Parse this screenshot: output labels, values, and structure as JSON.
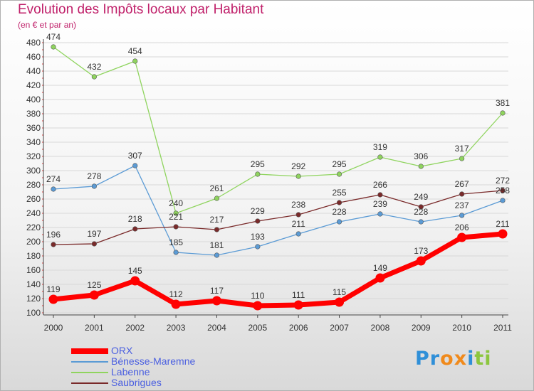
{
  "header": {
    "title": "Evolution des Impôts locaux par Habitant",
    "subtitle": "(en € et par an)"
  },
  "colors": {
    "title": "#c0206a",
    "legend_text": "#4a5fe0",
    "axis": "#333333"
  },
  "logo": {
    "text": "Proxiti",
    "letter_colors": [
      "#2f8fd8",
      "#2f8fd8",
      "#f08a1c",
      "#f08a1c",
      "#2f8fd8",
      "#8cc63f",
      "#8cc63f"
    ]
  },
  "chart_data": {
    "type": "line",
    "title": "Evolution des Impôts locaux par Habitant",
    "subtitle": "(en € et par an)",
    "xlabel": "",
    "ylabel": "",
    "x": [
      "2000",
      "2001",
      "2002",
      "2003",
      "2004",
      "2005",
      "2006",
      "2007",
      "2008",
      "2009",
      "2010",
      "2011"
    ],
    "ylim": [
      100,
      480
    ],
    "yticks": [
      100,
      120,
      140,
      160,
      180,
      200,
      220,
      240,
      260,
      280,
      300,
      320,
      340,
      360,
      380,
      400,
      420,
      440,
      460,
      480
    ],
    "grid": "horizontal",
    "legend_position": "bottom-left",
    "series": [
      {
        "name": "ORX",
        "color": "#ff0000",
        "thick": true,
        "values": [
          119,
          125,
          145,
          112,
          117,
          110,
          111,
          115,
          149,
          173,
          206,
          211
        ]
      },
      {
        "name": "Bénesse-Maremne",
        "color": "#5b9bd5",
        "thick": false,
        "values": [
          274,
          278,
          307,
          185,
          181,
          193,
          211,
          228,
          239,
          228,
          237,
          258
        ]
      },
      {
        "name": "Labenne",
        "color": "#8fd45e",
        "thick": false,
        "values": [
          474,
          432,
          454,
          240,
          261,
          295,
          292,
          295,
          319,
          306,
          317,
          381
        ]
      },
      {
        "name": "Saubrigues",
        "color": "#7a2a2a",
        "thick": false,
        "values": [
          196,
          197,
          218,
          221,
          217,
          229,
          238,
          255,
          266,
          249,
          267,
          272
        ]
      }
    ]
  }
}
